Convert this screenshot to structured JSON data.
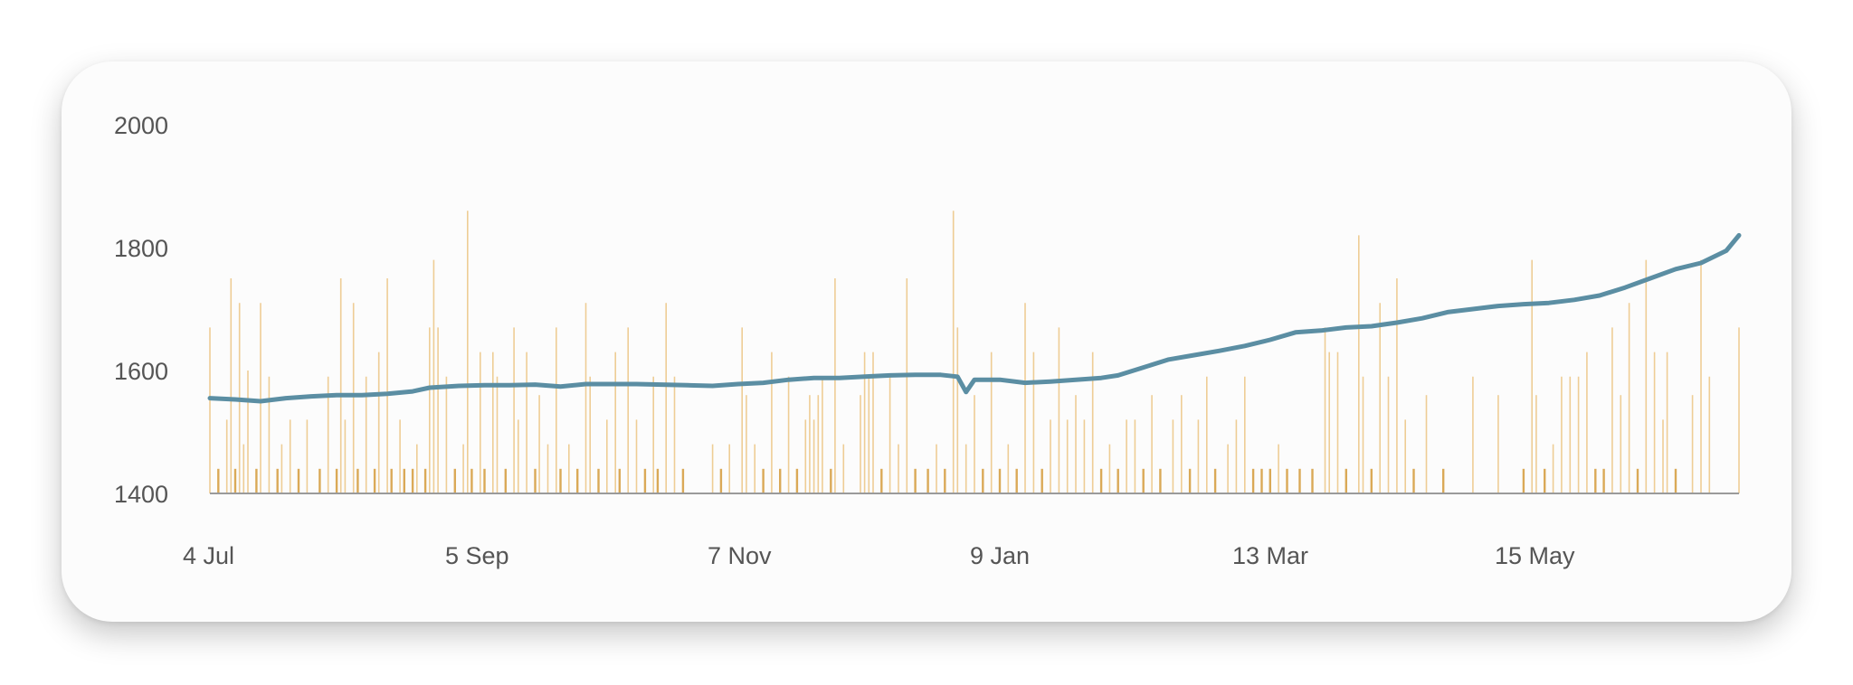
{
  "chart_data": {
    "type": "line+bar",
    "title": "",
    "xlabel": "",
    "ylabel": "",
    "ylim": [
      1400,
      2000
    ],
    "y_ticks": [
      "2000",
      "1800",
      "1600",
      "1400"
    ],
    "x_ticks": [
      "4 Jul",
      "5 Sep",
      "7 Nov",
      "9 Jan",
      "13 Mar",
      "15 May"
    ],
    "x_start": "2023-07-04",
    "x_end": "2024-06-30",
    "grid": false,
    "legend": "none",
    "colors": {
      "line": "#5b8ea3",
      "bars": "#e8b96a",
      "bars_strong": "#d49a3a",
      "axis": "#9a9a9a",
      "text": "#555555"
    },
    "line_series": {
      "name": "",
      "points": [
        [
          "2023-07-04",
          1555
        ],
        [
          "2023-07-10",
          1553
        ],
        [
          "2023-07-16",
          1550
        ],
        [
          "2023-07-22",
          1555
        ],
        [
          "2023-07-28",
          1558
        ],
        [
          "2023-08-03",
          1560
        ],
        [
          "2023-08-09",
          1560
        ],
        [
          "2023-08-15",
          1562
        ],
        [
          "2023-08-21",
          1566
        ],
        [
          "2023-08-25",
          1572
        ],
        [
          "2023-09-01",
          1575
        ],
        [
          "2023-09-07",
          1576
        ],
        [
          "2023-09-13",
          1576
        ],
        [
          "2023-09-19",
          1577
        ],
        [
          "2023-09-25",
          1574
        ],
        [
          "2023-10-01",
          1578
        ],
        [
          "2023-10-07",
          1578
        ],
        [
          "2023-10-13",
          1578
        ],
        [
          "2023-10-19",
          1577
        ],
        [
          "2023-10-25",
          1576
        ],
        [
          "2023-10-31",
          1575
        ],
        [
          "2023-11-06",
          1578
        ],
        [
          "2023-11-12",
          1580
        ],
        [
          "2023-11-18",
          1585
        ],
        [
          "2023-11-24",
          1588
        ],
        [
          "2023-11-30",
          1588
        ],
        [
          "2023-12-06",
          1590
        ],
        [
          "2023-12-12",
          1592
        ],
        [
          "2023-12-18",
          1593
        ],
        [
          "2023-12-24",
          1593
        ],
        [
          "2023-12-28",
          1590
        ],
        [
          "2023-12-30",
          1565
        ],
        [
          "2024-01-01",
          1585
        ],
        [
          "2024-01-07",
          1585
        ],
        [
          "2024-01-13",
          1580
        ],
        [
          "2024-01-19",
          1582
        ],
        [
          "2024-01-25",
          1585
        ],
        [
          "2024-01-31",
          1588
        ],
        [
          "2024-02-04",
          1592
        ],
        [
          "2024-02-10",
          1605
        ],
        [
          "2024-02-16",
          1618
        ],
        [
          "2024-02-22",
          1625
        ],
        [
          "2024-02-28",
          1632
        ],
        [
          "2024-03-05",
          1640
        ],
        [
          "2024-03-11",
          1650
        ],
        [
          "2024-03-17",
          1662
        ],
        [
          "2024-03-23",
          1665
        ],
        [
          "2024-03-29",
          1670
        ],
        [
          "2024-04-04",
          1672
        ],
        [
          "2024-04-10",
          1678
        ],
        [
          "2024-04-16",
          1685
        ],
        [
          "2024-04-22",
          1695
        ],
        [
          "2024-04-28",
          1700
        ],
        [
          "2024-05-04",
          1705
        ],
        [
          "2024-05-10",
          1708
        ],
        [
          "2024-05-16",
          1710
        ],
        [
          "2024-05-22",
          1715
        ],
        [
          "2024-05-28",
          1722
        ],
        [
          "2024-06-03",
          1735
        ],
        [
          "2024-06-09",
          1750
        ],
        [
          "2024-06-15",
          1765
        ],
        [
          "2024-06-21",
          1775
        ],
        [
          "2024-06-27",
          1795
        ],
        [
          "2024-06-30",
          1820
        ]
      ]
    },
    "bar_series": {
      "name": "",
      "bars": [
        [
          "2023-07-04",
          1670
        ],
        [
          "2023-07-06",
          1440
        ],
        [
          "2023-07-08",
          1520
        ],
        [
          "2023-07-09",
          1750
        ],
        [
          "2023-07-10",
          1440
        ],
        [
          "2023-07-11",
          1710
        ],
        [
          "2023-07-12",
          1480
        ],
        [
          "2023-07-13",
          1600
        ],
        [
          "2023-07-15",
          1440
        ],
        [
          "2023-07-16",
          1710
        ],
        [
          "2023-07-18",
          1590
        ],
        [
          "2023-07-20",
          1440
        ],
        [
          "2023-07-21",
          1480
        ],
        [
          "2023-07-23",
          1520
        ],
        [
          "2023-07-25",
          1440
        ],
        [
          "2023-07-27",
          1520
        ],
        [
          "2023-07-30",
          1440
        ],
        [
          "2023-08-01",
          1590
        ],
        [
          "2023-08-03",
          1440
        ],
        [
          "2023-08-04",
          1750
        ],
        [
          "2023-08-05",
          1520
        ],
        [
          "2023-08-07",
          1710
        ],
        [
          "2023-08-08",
          1440
        ],
        [
          "2023-08-10",
          1590
        ],
        [
          "2023-08-12",
          1440
        ],
        [
          "2023-08-13",
          1630
        ],
        [
          "2023-08-15",
          1750
        ],
        [
          "2023-08-16",
          1440
        ],
        [
          "2023-08-18",
          1520
        ],
        [
          "2023-08-19",
          1440
        ],
        [
          "2023-08-21",
          1440
        ],
        [
          "2023-08-22",
          1480
        ],
        [
          "2023-08-24",
          1440
        ],
        [
          "2023-08-25",
          1670
        ],
        [
          "2023-08-26",
          1780
        ],
        [
          "2023-08-27",
          1670
        ],
        [
          "2023-08-29",
          1590
        ],
        [
          "2023-08-31",
          1440
        ],
        [
          "2023-09-02",
          1480
        ],
        [
          "2023-09-03",
          1860
        ],
        [
          "2023-09-04",
          1440
        ],
        [
          "2023-09-06",
          1630
        ],
        [
          "2023-09-07",
          1440
        ],
        [
          "2023-09-09",
          1630
        ],
        [
          "2023-09-10",
          1590
        ],
        [
          "2023-09-12",
          1440
        ],
        [
          "2023-09-14",
          1670
        ],
        [
          "2023-09-15",
          1520
        ],
        [
          "2023-09-17",
          1630
        ],
        [
          "2023-09-19",
          1440
        ],
        [
          "2023-09-20",
          1560
        ],
        [
          "2023-09-22",
          1480
        ],
        [
          "2023-09-24",
          1670
        ],
        [
          "2023-09-25",
          1440
        ],
        [
          "2023-09-27",
          1480
        ],
        [
          "2023-09-29",
          1440
        ],
        [
          "2023-10-01",
          1710
        ],
        [
          "2023-10-02",
          1590
        ],
        [
          "2023-10-04",
          1440
        ],
        [
          "2023-10-06",
          1520
        ],
        [
          "2023-10-08",
          1630
        ],
        [
          "2023-10-09",
          1440
        ],
        [
          "2023-10-11",
          1670
        ],
        [
          "2023-10-13",
          1520
        ],
        [
          "2023-10-15",
          1440
        ],
        [
          "2023-10-17",
          1590
        ],
        [
          "2023-10-18",
          1440
        ],
        [
          "2023-10-20",
          1710
        ],
        [
          "2023-10-22",
          1590
        ],
        [
          "2023-10-24",
          1440
        ],
        [
          "2023-10-31",
          1480
        ],
        [
          "2023-11-02",
          1440
        ],
        [
          "2023-11-04",
          1480
        ],
        [
          "2023-11-07",
          1670
        ],
        [
          "2023-11-08",
          1560
        ],
        [
          "2023-11-10",
          1480
        ],
        [
          "2023-11-12",
          1440
        ],
        [
          "2023-11-14",
          1630
        ],
        [
          "2023-11-16",
          1440
        ],
        [
          "2023-11-18",
          1590
        ],
        [
          "2023-11-20",
          1440
        ],
        [
          "2023-11-22",
          1520
        ],
        [
          "2023-11-23",
          1560
        ],
        [
          "2023-11-24",
          1520
        ],
        [
          "2023-11-25",
          1560
        ],
        [
          "2023-11-26",
          1590
        ],
        [
          "2023-11-28",
          1440
        ],
        [
          "2023-11-29",
          1750
        ],
        [
          "2023-12-01",
          1480
        ],
        [
          "2023-12-05",
          1560
        ],
        [
          "2023-12-06",
          1630
        ],
        [
          "2023-12-07",
          1590
        ],
        [
          "2023-12-08",
          1630
        ],
        [
          "2023-12-10",
          1440
        ],
        [
          "2023-12-12",
          1590
        ],
        [
          "2023-12-14",
          1480
        ],
        [
          "2023-12-16",
          1750
        ],
        [
          "2023-12-18",
          1440
        ],
        [
          "2023-12-21",
          1440
        ],
        [
          "2023-12-23",
          1480
        ],
        [
          "2023-12-25",
          1440
        ],
        [
          "2023-12-27",
          1860
        ],
        [
          "2023-12-28",
          1670
        ],
        [
          "2023-12-30",
          1480
        ],
        [
          "2024-01-01",
          1560
        ],
        [
          "2024-01-03",
          1440
        ],
        [
          "2024-01-05",
          1630
        ],
        [
          "2024-01-07",
          1440
        ],
        [
          "2024-01-09",
          1480
        ],
        [
          "2024-01-11",
          1440
        ],
        [
          "2024-01-13",
          1710
        ],
        [
          "2024-01-15",
          1630
        ],
        [
          "2024-01-17",
          1440
        ],
        [
          "2024-01-19",
          1520
        ],
        [
          "2024-01-21",
          1670
        ],
        [
          "2024-01-23",
          1520
        ],
        [
          "2024-01-25",
          1560
        ],
        [
          "2024-01-27",
          1520
        ],
        [
          "2024-01-29",
          1630
        ],
        [
          "2024-01-31",
          1440
        ],
        [
          "2024-02-02",
          1480
        ],
        [
          "2024-02-04",
          1440
        ],
        [
          "2024-02-06",
          1520
        ],
        [
          "2024-02-08",
          1520
        ],
        [
          "2024-02-10",
          1440
        ],
        [
          "2024-02-12",
          1560
        ],
        [
          "2024-02-14",
          1440
        ],
        [
          "2024-02-17",
          1520
        ],
        [
          "2024-02-19",
          1560
        ],
        [
          "2024-02-21",
          1440
        ],
        [
          "2024-02-23",
          1520
        ],
        [
          "2024-02-25",
          1590
        ],
        [
          "2024-02-27",
          1440
        ],
        [
          "2024-03-01",
          1480
        ],
        [
          "2024-03-03",
          1520
        ],
        [
          "2024-03-05",
          1590
        ],
        [
          "2024-03-07",
          1440
        ],
        [
          "2024-03-09",
          1440
        ],
        [
          "2024-03-11",
          1440
        ],
        [
          "2024-03-13",
          1480
        ],
        [
          "2024-03-15",
          1440
        ],
        [
          "2024-03-18",
          1440
        ],
        [
          "2024-03-21",
          1440
        ],
        [
          "2024-03-24",
          1670
        ],
        [
          "2024-03-25",
          1630
        ],
        [
          "2024-03-27",
          1630
        ],
        [
          "2024-03-29",
          1440
        ],
        [
          "2024-04-01",
          1820
        ],
        [
          "2024-04-02",
          1590
        ],
        [
          "2024-04-04",
          1440
        ],
        [
          "2024-04-06",
          1710
        ],
        [
          "2024-04-08",
          1590
        ],
        [
          "2024-04-10",
          1750
        ],
        [
          "2024-04-12",
          1520
        ],
        [
          "2024-04-14",
          1440
        ],
        [
          "2024-04-17",
          1560
        ],
        [
          "2024-04-21",
          1440
        ],
        [
          "2024-04-28",
          1590
        ],
        [
          "2024-05-04",
          1560
        ],
        [
          "2024-05-10",
          1440
        ],
        [
          "2024-05-12",
          1780
        ],
        [
          "2024-05-13",
          1560
        ],
        [
          "2024-05-15",
          1440
        ],
        [
          "2024-05-17",
          1480
        ],
        [
          "2024-05-19",
          1590
        ],
        [
          "2024-05-21",
          1590
        ],
        [
          "2024-05-23",
          1590
        ],
        [
          "2024-05-25",
          1630
        ],
        [
          "2024-05-27",
          1440
        ],
        [
          "2024-05-29",
          1440
        ],
        [
          "2024-05-31",
          1670
        ],
        [
          "2024-06-02",
          1560
        ],
        [
          "2024-06-04",
          1710
        ],
        [
          "2024-06-06",
          1440
        ],
        [
          "2024-06-08",
          1780
        ],
        [
          "2024-06-10",
          1630
        ],
        [
          "2024-06-12",
          1520
        ],
        [
          "2024-06-13",
          1630
        ],
        [
          "2024-06-15",
          1440
        ],
        [
          "2024-06-19",
          1560
        ],
        [
          "2024-06-21",
          1780
        ],
        [
          "2024-06-23",
          1590
        ],
        [
          "2024-06-30",
          1670
        ]
      ]
    }
  }
}
